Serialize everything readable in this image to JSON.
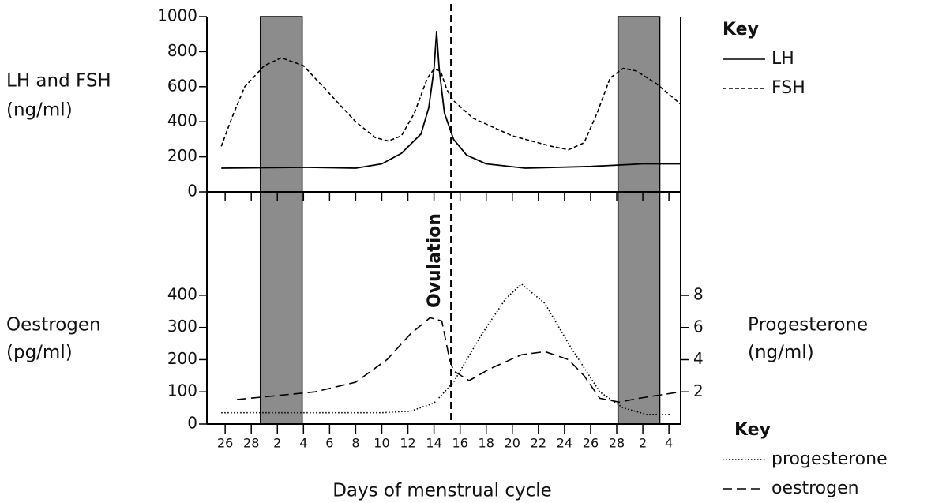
{
  "chart_data": [
    {
      "type": "line",
      "ylabel": [
        "LH and FSH",
        "(ng/ml)"
      ],
      "ylim": [
        0,
        1000
      ],
      "yticks": [
        0,
        200,
        400,
        600,
        800,
        1000
      ],
      "shaded_regions": [
        [
          2.7,
          5.9
        ],
        [
          30.1,
          33.3
        ]
      ],
      "annotation": {
        "x": 17.3,
        "label": "Ovulation"
      },
      "legend_title": "Key",
      "legend": "upper right",
      "series": [
        {
          "name": "LH",
          "color": "#000000",
          "style": "solid",
          "x": [
            -0.3,
            6,
            10,
            12,
            13.5,
            15,
            15.6,
            16.0,
            16.2,
            16.4,
            16.8,
            17.5,
            18.5,
            20,
            23,
            28,
            32,
            34.9
          ],
          "values": [
            135,
            140,
            135,
            160,
            220,
            330,
            480,
            700,
            915,
            700,
            450,
            300,
            210,
            160,
            135,
            145,
            160,
            160
          ]
        },
        {
          "name": "FSH",
          "color": "#000000",
          "style": "dashed",
          "x": [
            -0.3,
            0.5,
            1.5,
            3,
            4.3,
            6,
            8,
            10,
            11.5,
            12.5,
            13.5,
            14.5,
            15.5,
            16,
            16.5,
            17,
            17.5,
            19,
            22,
            25,
            26.3,
            27.5,
            28.5,
            29.5,
            30.5,
            31.5,
            33,
            34.9
          ],
          "values": [
            260,
            420,
            600,
            720,
            765,
            720,
            560,
            400,
            310,
            290,
            320,
            450,
            650,
            700,
            690,
            580,
            520,
            420,
            320,
            260,
            240,
            280,
            450,
            650,
            705,
            690,
            620,
            500
          ]
        }
      ]
    },
    {
      "type": "line",
      "ylabel": [
        "Oestrogen",
        "(pg/ml)"
      ],
      "y2label": [
        "Progesterone",
        "(ng/ml)"
      ],
      "xlabel": "Days of menstrual cycle",
      "xlim": [
        -1.4,
        34.9
      ],
      "xticks": [
        {
          "value": 0,
          "label": "26"
        },
        {
          "value": 2,
          "label": "28"
        },
        {
          "value": 4,
          "label": "2"
        },
        {
          "value": 6,
          "label": "4"
        },
        {
          "value": 8,
          "label": "6"
        },
        {
          "value": 10,
          "label": "8"
        },
        {
          "value": 12,
          "label": "10"
        },
        {
          "value": 14,
          "label": "12"
        },
        {
          "value": 16,
          "label": "14"
        },
        {
          "value": 18,
          "label": "16"
        },
        {
          "value": 20,
          "label": "18"
        },
        {
          "value": 22,
          "label": "20"
        },
        {
          "value": 24,
          "label": "22"
        },
        {
          "value": 26,
          "label": "24"
        },
        {
          "value": 28,
          "label": "26"
        },
        {
          "value": 30,
          "label": "28"
        },
        {
          "value": 32,
          "label": "2"
        },
        {
          "value": 34,
          "label": "4"
        }
      ],
      "ylim": [
        0,
        721
      ],
      "yticks": [
        0,
        100,
        200,
        300,
        400
      ],
      "y2lim": [
        0,
        14.43
      ],
      "y2ticks": [
        2,
        4,
        6,
        8
      ],
      "legend_title": "Key",
      "legend": "lower right",
      "series": [
        {
          "name": "progesterone",
          "color": "#000000",
          "style": "dotted",
          "axis": "y2",
          "x": [
            -0.3,
            4,
            8,
            12,
            14.2,
            16,
            17.5,
            19.6,
            21.5,
            22.7,
            24.5,
            26.3,
            28.7,
            30.5,
            32.3,
            34.1
          ],
          "values": [
            0.7,
            0.7,
            0.7,
            0.7,
            0.8,
            1.3,
            2.6,
            5.5,
            7.8,
            8.7,
            7.5,
            5,
            2,
            1,
            0.6,
            0.6
          ]
        },
        {
          "name": "oestrogen",
          "color": "#000000",
          "style": "longdash",
          "x": [
            0.9,
            6.9,
            10,
            12.4,
            14.2,
            15.7,
            16.6,
            17.2,
            17.5,
            18.7,
            20.2,
            22.7,
            24.5,
            26.3,
            27.5,
            28.7,
            30.2,
            31.7,
            34.9
          ],
          "values": [
            76,
            100,
            130,
            200,
            280,
            330,
            320,
            200,
            165,
            135,
            170,
            215,
            225,
            200,
            150,
            80,
            68,
            80,
            100
          ]
        }
      ]
    }
  ]
}
